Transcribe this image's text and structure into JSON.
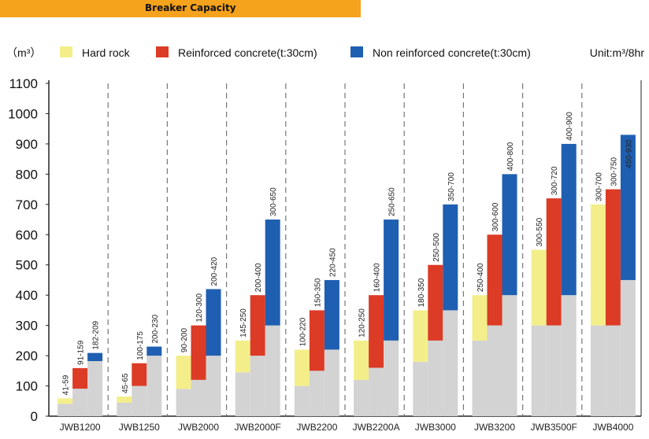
{
  "header": {
    "title": "Breaker Capacity"
  },
  "chart_data": {
    "type": "bar",
    "yunit": "（m³）",
    "unit_note": "Unit:m³/8hr",
    "ylim": [
      0,
      1100
    ],
    "yticks": [
      0,
      100,
      200,
      300,
      400,
      500,
      600,
      700,
      800,
      900,
      1000,
      1100
    ],
    "categories": [
      "JWB1200",
      "JWB1250",
      "JWB2000",
      "JWB2000F",
      "JWB2200",
      "JWB2200A",
      "JWB3000",
      "JWB3200",
      "JWB3500F",
      "JWB4000"
    ],
    "series": [
      {
        "name": "Hard rock",
        "color": "#f4ee8a",
        "values": [
          [
            41,
            59
          ],
          [
            45,
            65
          ],
          [
            90,
            200
          ],
          [
            145,
            250
          ],
          [
            100,
            220
          ],
          [
            120,
            250
          ],
          [
            180,
            350
          ],
          [
            250,
            400
          ],
          [
            300,
            550
          ],
          [
            300,
            700
          ]
        ],
        "labels": [
          "41-59",
          "45-65",
          "90-200",
          "145-250",
          "100-220",
          "120-250",
          "180-350",
          "250-400",
          "300-550",
          "300-700"
        ]
      },
      {
        "name": "Reinforced concrete(t:30cm)",
        "color": "#dc3b26",
        "values": [
          [
            91,
            159
          ],
          [
            100,
            175
          ],
          [
            120,
            300
          ],
          [
            200,
            400
          ],
          [
            150,
            350
          ],
          [
            160,
            400
          ],
          [
            250,
            500
          ],
          [
            300,
            600
          ],
          [
            300,
            720
          ],
          [
            300,
            750
          ]
        ],
        "labels": [
          "91-159",
          "100-175",
          "120-300",
          "200-400",
          "150-350",
          "160-400",
          "250-500",
          "300-600",
          "300-720",
          "300-750"
        ]
      },
      {
        "name": "Non reinforced concrete(t:30cm)",
        "color": "#1f5fb2",
        "values": [
          [
            182,
            209
          ],
          [
            200,
            230
          ],
          [
            200,
            420
          ],
          [
            300,
            650
          ],
          [
            220,
            450
          ],
          [
            250,
            650
          ],
          [
            350,
            700
          ],
          [
            400,
            800
          ],
          [
            400,
            900
          ],
          [
            450,
            930
          ]
        ],
        "labels": [
          "182-209",
          "200-230",
          "200-420",
          "300-650",
          "220-450",
          "250-650",
          "350-700",
          "400-800",
          "400-900",
          "450-930"
        ]
      }
    ],
    "lower_fill_color": "#d3d3d3",
    "legend_position": "top",
    "grid": false
  }
}
